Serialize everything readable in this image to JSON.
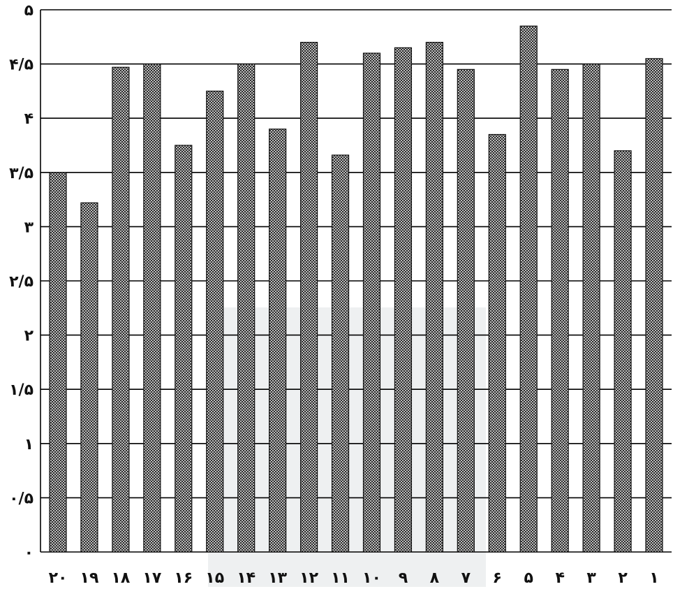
{
  "chart_data": {
    "type": "bar",
    "categories": [
      "۲۰",
      "۱۹",
      "۱۸",
      "۱۷",
      "۱۶",
      "۱۵",
      "۱۴",
      "۱۳",
      "۱۲",
      "۱۱",
      "۱۰",
      "۹",
      "۸",
      "۷",
      "۶",
      "۵",
      "۴",
      "۳",
      "۲",
      "۱"
    ],
    "values": [
      3.5,
      3.22,
      4.47,
      4.5,
      3.75,
      4.25,
      4.5,
      3.9,
      4.7,
      3.66,
      4.6,
      4.65,
      4.7,
      4.45,
      3.85,
      4.85,
      4.45,
      4.5,
      3.7,
      4.55
    ],
    "ylim": [
      0,
      5
    ],
    "yticks": [
      0,
      0.5,
      1,
      1.5,
      2,
      2.5,
      3,
      3.5,
      4,
      4.5,
      5
    ],
    "ytick_labels": [
      "۰",
      "۰/۵",
      "۱",
      "۱/۵",
      "۲",
      "۲/۵",
      "۳",
      "۳/۵",
      "۴",
      "۴/۵",
      "۵"
    ],
    "title": "",
    "xlabel": "",
    "ylabel": "",
    "grid": true,
    "bar_color": "#8e8e8e"
  }
}
